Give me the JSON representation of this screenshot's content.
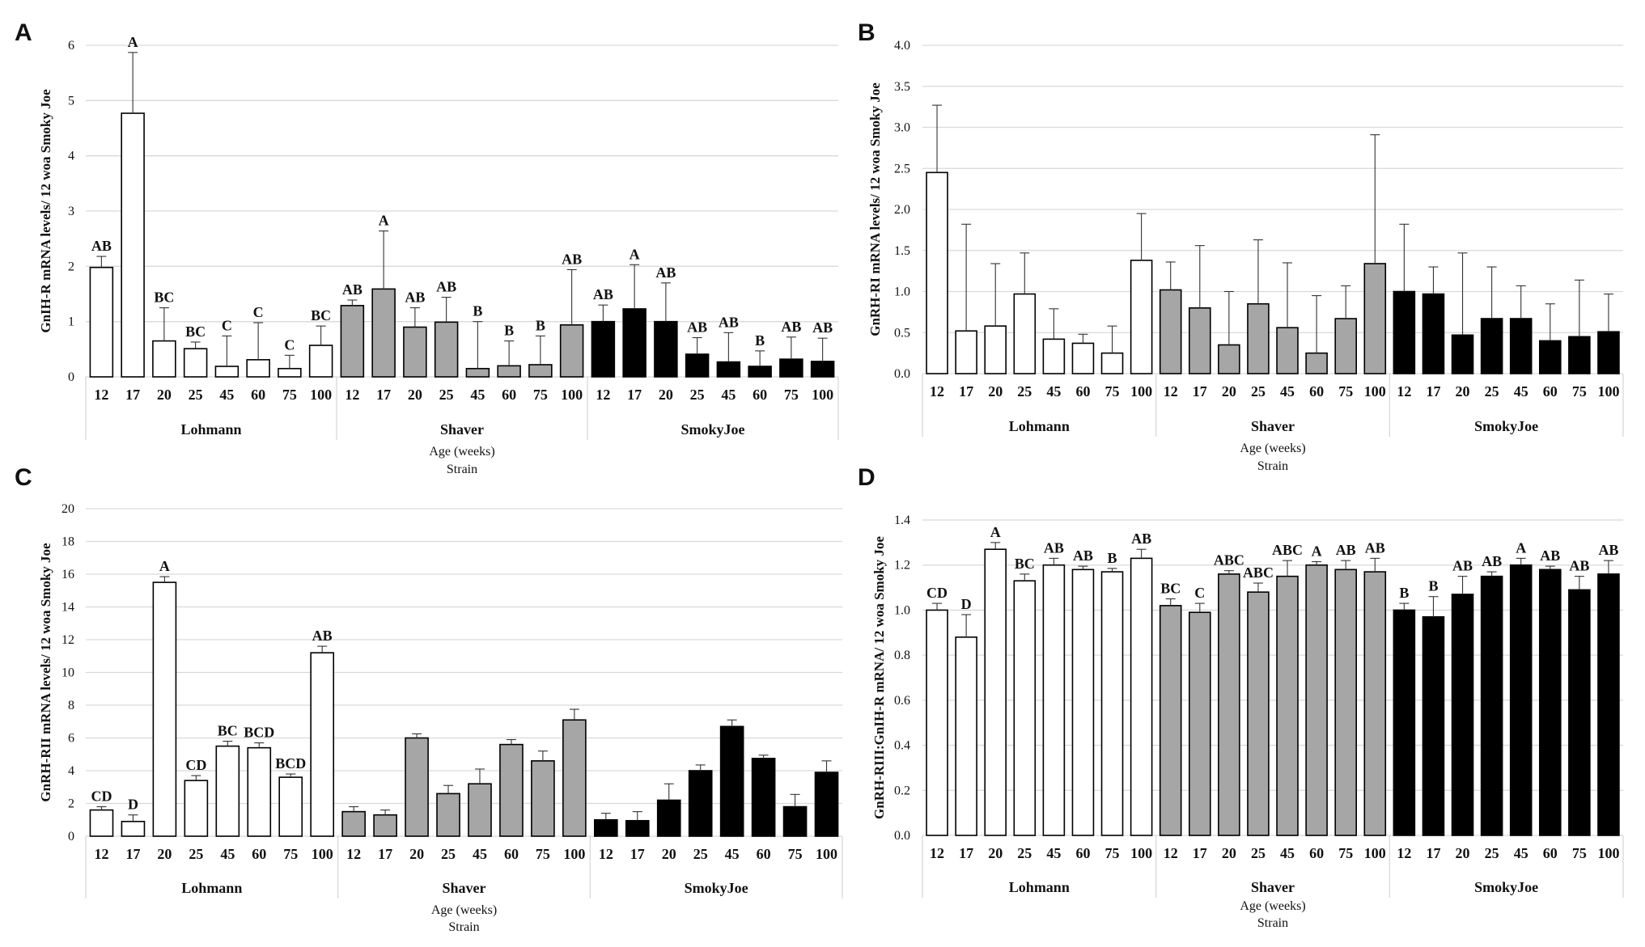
{
  "figure": {
    "x_title": "Age (weeks)",
    "x_subtitle": "Strain",
    "x_title_d": "Age (weeks)",
    "x_subtitle_d": "Strain"
  },
  "chart_data": [
    {
      "panel": "A",
      "type": "bar",
      "ylabel": "GnIH-R mRNA levels/ 12 woa Smoky Joe",
      "xlabel": "Age (weeks)",
      "xlabel2": "Strain",
      "ylim": [
        0,
        6
      ],
      "yticks": [
        "0",
        "1",
        "2",
        "3",
        "4",
        "5",
        "6"
      ],
      "grid": true,
      "categories": [
        "12",
        "17",
        "20",
        "25",
        "45",
        "60",
        "75",
        "100"
      ],
      "groups": [
        "Lohmann",
        "Shaver",
        "SmokyJoe"
      ],
      "group_colors": [
        "#ffffff",
        "#a6a6a6",
        "#000000"
      ],
      "series": [
        {
          "name": "Lohmann",
          "values": [
            1.98,
            4.77,
            0.65,
            0.51,
            0.19,
            0.31,
            0.15,
            0.57
          ],
          "errors": [
            0.2,
            1.1,
            0.6,
            0.12,
            0.55,
            0.67,
            0.24,
            0.35
          ],
          "labels": [
            "AB",
            "A",
            "BC",
            "BC",
            "C",
            "C",
            "C",
            "BC"
          ]
        },
        {
          "name": "Shaver",
          "values": [
            1.29,
            1.59,
            0.9,
            0.99,
            0.15,
            0.2,
            0.22,
            0.94
          ],
          "errors": [
            0.1,
            1.05,
            0.35,
            0.45,
            0.85,
            0.45,
            0.52,
            1.0
          ],
          "labels": [
            "AB",
            "A",
            "AB",
            "AB",
            "B",
            "B",
            "B",
            "AB"
          ]
        },
        {
          "name": "SmokyJoe",
          "values": [
            1.0,
            1.23,
            1.0,
            0.41,
            0.27,
            0.19,
            0.32,
            0.28
          ],
          "errors": [
            0.3,
            0.8,
            0.7,
            0.3,
            0.53,
            0.28,
            0.4,
            0.42
          ],
          "labels": [
            "AB",
            "A",
            "AB",
            "AB",
            "AB",
            "B",
            "AB",
            "AB"
          ]
        }
      ]
    },
    {
      "panel": "B",
      "type": "bar",
      "ylabel": "GnRH-RI mRNA levels/ 12 woa Smoky Joe",
      "xlabel": "Age (weeks)",
      "xlabel2": "Strain",
      "ylim": [
        0,
        4
      ],
      "yticks": [
        "0.0",
        "0.5",
        "1.0",
        "1.5",
        "2.0",
        "2.5",
        "3.0",
        "3.5",
        "4.0"
      ],
      "grid": true,
      "categories": [
        "12",
        "17",
        "20",
        "25",
        "45",
        "60",
        "75",
        "100"
      ],
      "groups": [
        "Lohmann",
        "Shaver",
        "SmokyJoe"
      ],
      "group_colors": [
        "#ffffff",
        "#a6a6a6",
        "#000000"
      ],
      "series": [
        {
          "name": "Lohmann",
          "values": [
            2.45,
            0.52,
            0.58,
            0.97,
            0.42,
            0.37,
            0.25,
            1.38
          ],
          "errors": [
            0.82,
            1.3,
            0.76,
            0.5,
            0.37,
            0.11,
            0.33,
            0.57
          ],
          "labels": []
        },
        {
          "name": "Shaver",
          "values": [
            1.02,
            0.8,
            0.35,
            0.85,
            0.56,
            0.25,
            0.67,
            1.34
          ],
          "errors": [
            0.34,
            0.76,
            0.65,
            0.78,
            0.79,
            0.7,
            0.4,
            1.57
          ],
          "labels": []
        },
        {
          "name": "SmokyJoe",
          "values": [
            1.0,
            0.97,
            0.47,
            0.67,
            0.67,
            0.4,
            0.45,
            0.51
          ],
          "errors": [
            0.82,
            0.33,
            1.0,
            0.63,
            0.4,
            0.45,
            0.69,
            0.46
          ],
          "labels": []
        }
      ]
    },
    {
      "panel": "C",
      "type": "bar",
      "ylabel": "GnRH-RII mRNA levels/ 12 woa Smoky Joe",
      "xlabel": "Age (weeks)",
      "xlabel2": "Strain",
      "ylim": [
        0,
        20
      ],
      "yticks": [
        "0",
        "2",
        "4",
        "6",
        "8",
        "10",
        "12",
        "14",
        "16",
        "18",
        "20"
      ],
      "grid": true,
      "categories": [
        "12",
        "17",
        "20",
        "25",
        "45",
        "60",
        "75",
        "100"
      ],
      "groups": [
        "Lohmann",
        "Shaver",
        "SmokyJoe"
      ],
      "group_colors": [
        "#ffffff",
        "#a6a6a6",
        "#000000"
      ],
      "series": [
        {
          "name": "Lohmann",
          "values": [
            1.6,
            0.9,
            15.5,
            3.4,
            5.5,
            5.4,
            3.6,
            11.2
          ],
          "errors": [
            0.2,
            0.4,
            0.35,
            0.3,
            0.3,
            0.3,
            0.2,
            0.4
          ],
          "labels": [
            "CD",
            "D",
            "A",
            "CD",
            "BC",
            "BCD",
            "BCD",
            "AB"
          ]
        },
        {
          "name": "Shaver",
          "values": [
            1.5,
            1.3,
            6.0,
            2.6,
            3.2,
            5.6,
            4.6,
            7.1
          ],
          "errors": [
            0.3,
            0.3,
            0.25,
            0.5,
            0.9,
            0.3,
            0.6,
            0.65
          ],
          "labels": []
        },
        {
          "name": "SmokyJoe",
          "values": [
            1.0,
            0.95,
            2.2,
            4.0,
            6.7,
            4.75,
            1.8,
            3.9
          ],
          "errors": [
            0.4,
            0.55,
            1.0,
            0.35,
            0.4,
            0.2,
            0.75,
            0.7
          ],
          "labels": []
        }
      ]
    },
    {
      "panel": "D",
      "type": "bar",
      "ylabel": "GnRH-RIII:GnIH-R mRNA/ 12 woa Smoky Joe",
      "xlabel": "Age (weeks)",
      "xlabel2": "Strain",
      "ylim": [
        0,
        1.4
      ],
      "yticks": [
        "0.0",
        "0.2",
        "0.4",
        "0.6",
        "0.8",
        "1.0",
        "1.2",
        "1.4"
      ],
      "grid": true,
      "categories": [
        "12",
        "17",
        "20",
        "25",
        "45",
        "60",
        "75",
        "100"
      ],
      "groups": [
        "Lohmann",
        "Shaver",
        "SmokyJoe"
      ],
      "group_colors": [
        "#ffffff",
        "#a6a6a6",
        "#000000"
      ],
      "series": [
        {
          "name": "Lohmann",
          "values": [
            1.0,
            0.88,
            1.27,
            1.13,
            1.2,
            1.18,
            1.17,
            1.23
          ],
          "errors": [
            0.03,
            0.1,
            0.03,
            0.03,
            0.03,
            0.015,
            0.015,
            0.04
          ],
          "labels": [
            "CD",
            "D",
            "A",
            "BC",
            "AB",
            "AB",
            "B",
            "AB"
          ]
        },
        {
          "name": "Shaver",
          "values": [
            1.02,
            0.99,
            1.16,
            1.08,
            1.15,
            1.2,
            1.18,
            1.17
          ],
          "errors": [
            0.03,
            0.04,
            0.015,
            0.04,
            0.07,
            0.015,
            0.04,
            0.06
          ],
          "labels": [
            "BC",
            "C",
            "ABC",
            "ABC",
            "ABC",
            "A",
            "AB",
            "AB"
          ]
        },
        {
          "name": "SmokyJoe",
          "values": [
            1.0,
            0.97,
            1.07,
            1.15,
            1.2,
            1.18,
            1.09,
            1.16
          ],
          "errors": [
            0.03,
            0.09,
            0.08,
            0.02,
            0.03,
            0.015,
            0.06,
            0.06
          ],
          "labels": [
            "B",
            "B",
            "AB",
            "AB",
            "A",
            "AB",
            "AB",
            "AB"
          ]
        }
      ]
    }
  ]
}
